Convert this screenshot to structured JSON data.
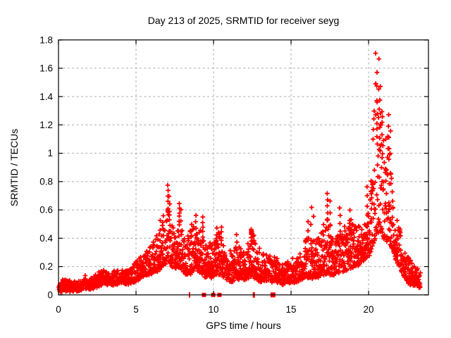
{
  "title": "Day 213 of 2025, SRMTID for receiver seyg",
  "colors": {
    "marker": "#ff0000",
    "grid": "#a6a6a6",
    "axis": "#000000",
    "background": "#ffffff"
  },
  "chart_data": {
    "type": "scatter",
    "title": "Day 213 of 2025, SRMTID for receiver seyg",
    "xlabel": "GPS time / hours",
    "ylabel": "SRMTID / TECUs",
    "xlim": [
      0,
      23.86
    ],
    "ylim": [
      0,
      1.8
    ],
    "x_ticks": [
      0,
      5,
      10,
      15,
      20
    ],
    "x_tick_labels": [
      "0",
      "5",
      "10",
      "15",
      "20"
    ],
    "y_ticks": [
      0,
      0.2,
      0.4,
      0.6,
      0.8,
      1.0,
      1.2,
      1.4,
      1.6,
      1.8
    ],
    "y_tick_labels": [
      "0",
      "0.2",
      "0.4",
      "0.6",
      "0.8",
      "1",
      "1.2",
      "1.4",
      "1.6",
      "1.8"
    ],
    "grid": true,
    "legend": false,
    "marker": "plus",
    "series": [
      {
        "style": "points-plus",
        "color": "#ff0000",
        "envelope_profile": [
          [
            0.0,
            0.03,
            0.09
          ],
          [
            0.5,
            0.03,
            0.12
          ],
          [
            1.0,
            0.03,
            0.09
          ],
          [
            1.5,
            0.04,
            0.1
          ],
          [
            1.7,
            0.05,
            0.13
          ],
          [
            2.0,
            0.04,
            0.11
          ],
          [
            2.5,
            0.06,
            0.16
          ],
          [
            3.0,
            0.08,
            0.17
          ],
          [
            3.5,
            0.07,
            0.16
          ],
          [
            4.0,
            0.09,
            0.18
          ],
          [
            4.5,
            0.08,
            0.17
          ],
          [
            5.0,
            0.1,
            0.23
          ],
          [
            5.5,
            0.13,
            0.29
          ],
          [
            6.0,
            0.15,
            0.36
          ],
          [
            6.5,
            0.18,
            0.46
          ],
          [
            6.9,
            0.22,
            0.56
          ],
          [
            7.05,
            0.25,
            0.62
          ],
          [
            7.2,
            0.22,
            0.55
          ],
          [
            7.5,
            0.18,
            0.45
          ],
          [
            7.8,
            0.2,
            0.55
          ],
          [
            8.1,
            0.15,
            0.4
          ],
          [
            8.5,
            0.15,
            0.45
          ],
          [
            8.8,
            0.18,
            0.5
          ],
          [
            9.2,
            0.15,
            0.48
          ],
          [
            9.6,
            0.12,
            0.35
          ],
          [
            10.0,
            0.13,
            0.4
          ],
          [
            10.4,
            0.14,
            0.45
          ],
          [
            10.8,
            0.1,
            0.3
          ],
          [
            11.2,
            0.1,
            0.32
          ],
          [
            11.5,
            0.12,
            0.38
          ],
          [
            12.0,
            0.1,
            0.3
          ],
          [
            12.5,
            0.13,
            0.42
          ],
          [
            13.0,
            0.1,
            0.32
          ],
          [
            13.5,
            0.1,
            0.28
          ],
          [
            14.0,
            0.09,
            0.26
          ],
          [
            14.5,
            0.08,
            0.22
          ],
          [
            15.0,
            0.09,
            0.25
          ],
          [
            15.5,
            0.1,
            0.3
          ],
          [
            16.0,
            0.12,
            0.4
          ],
          [
            16.5,
            0.12,
            0.38
          ],
          [
            17.0,
            0.14,
            0.5
          ],
          [
            17.4,
            0.15,
            0.55
          ],
          [
            17.8,
            0.14,
            0.42
          ],
          [
            18.2,
            0.16,
            0.45
          ],
          [
            18.7,
            0.18,
            0.55
          ],
          [
            19.2,
            0.2,
            0.5
          ],
          [
            19.7,
            0.25,
            0.46
          ],
          [
            20.1,
            0.28,
            0.7
          ],
          [
            20.45,
            0.4,
            1.55
          ],
          [
            20.7,
            0.45,
            1.45
          ],
          [
            21.0,
            0.4,
            1.15
          ],
          [
            21.35,
            0.35,
            1.1
          ],
          [
            21.6,
            0.28,
            0.6
          ],
          [
            22.0,
            0.2,
            0.48
          ],
          [
            22.3,
            0.13,
            0.33
          ],
          [
            22.6,
            0.08,
            0.26
          ],
          [
            23.0,
            0.06,
            0.22
          ],
          [
            23.35,
            0.06,
            0.16
          ]
        ],
        "spike_columns": [
          [
            6.55,
            0.52,
            3
          ],
          [
            6.75,
            0.56,
            4
          ],
          [
            7.05,
            0.77,
            6
          ],
          [
            7.15,
            0.7,
            4
          ],
          [
            7.8,
            0.65,
            6
          ],
          [
            7.9,
            0.6,
            3
          ],
          [
            8.6,
            0.5,
            4
          ],
          [
            8.85,
            0.56,
            4
          ],
          [
            9.3,
            0.55,
            5
          ],
          [
            10.2,
            0.47,
            4
          ],
          [
            10.5,
            0.48,
            4
          ],
          [
            11.5,
            0.42,
            3
          ],
          [
            12.45,
            0.47,
            5
          ],
          [
            12.6,
            0.42,
            3
          ],
          [
            16.1,
            0.52,
            3
          ],
          [
            16.3,
            0.62,
            3
          ],
          [
            16.45,
            0.56,
            2
          ],
          [
            17.35,
            0.71,
            5
          ],
          [
            17.5,
            0.66,
            3
          ],
          [
            18.15,
            0.62,
            4
          ],
          [
            18.8,
            0.6,
            3
          ],
          [
            19.9,
            0.76,
            4
          ],
          [
            20.2,
            0.8,
            6
          ],
          [
            20.47,
            1.7,
            2
          ],
          [
            20.55,
            1.57,
            5
          ],
          [
            20.65,
            1.66,
            3
          ],
          [
            20.75,
            1.47,
            5
          ],
          [
            20.85,
            1.3,
            5
          ],
          [
            21.3,
            1.27,
            5
          ],
          [
            21.4,
            1.15,
            3
          ]
        ]
      },
      {
        "style": "filled-squares",
        "color": "#ff0000",
        "points": [
          [
            8.45,
            0,
            2,
            8
          ],
          [
            9.38,
            0,
            6,
            6
          ],
          [
            9.98,
            0,
            6,
            6
          ],
          [
            10.38,
            0,
            6,
            6
          ],
          [
            12.45,
            0.44,
            7,
            7
          ],
          [
            12.6,
            0,
            3,
            8
          ],
          [
            13.83,
            0,
            7,
            7
          ]
        ]
      }
    ],
    "generator": {
      "seed": 42,
      "dt": 0.01,
      "t_start": 0.02,
      "t_end": 23.35,
      "bias_exponent": 1.7,
      "jitter": 0.02
    }
  }
}
